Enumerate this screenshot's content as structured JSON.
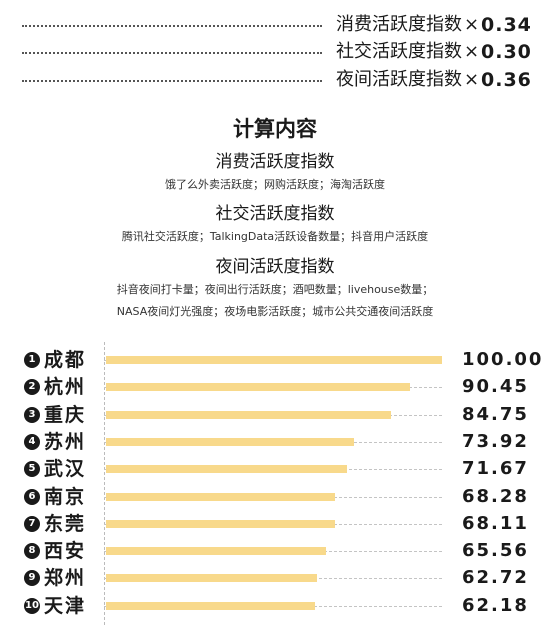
{
  "weights": [
    {
      "label": "消费活跃度指数",
      "times": "×",
      "value": "0.34"
    },
    {
      "label": "社交活跃度指数",
      "times": "×",
      "value": "0.30"
    },
    {
      "label": "夜间活跃度指数",
      "times": "×",
      "value": "0.36"
    }
  ],
  "calc": {
    "title": "计算内容",
    "sections": [
      {
        "title": "消费活跃度指数",
        "lines": [
          "饿了么外卖活跃度；网购活跃度；海淘活跃度"
        ]
      },
      {
        "title": "社交活跃度指数",
        "lines": [
          "腾讯社交活跃度；TalkingData活跃设备数量；抖音用户活跃度"
        ]
      },
      {
        "title": "夜间活跃度指数",
        "lines": [
          "抖音夜间打卡量；夜间出行活跃度；酒吧数量；livehouse数量；",
          "NASA夜间灯光强度；夜场电影活跃度；城市公共交通夜间活跃度"
        ]
      }
    ]
  },
  "chart_data": {
    "type": "bar",
    "orientation": "horizontal",
    "categories": [
      "成都",
      "杭州",
      "重庆",
      "苏州",
      "武汉",
      "南京",
      "东莞",
      "西安",
      "郑州",
      "天津"
    ],
    "ranks": [
      "1",
      "2",
      "3",
      "4",
      "5",
      "6",
      "7",
      "8",
      "9",
      "10"
    ],
    "values": [
      100.0,
      90.45,
      84.75,
      73.92,
      71.67,
      68.28,
      68.11,
      65.56,
      62.72,
      62.18
    ],
    "value_labels": [
      "100.00",
      "90.45",
      "84.75",
      "73.92",
      "71.67",
      "68.28",
      "68.11",
      "65.56",
      "62.72",
      "62.18"
    ],
    "xlim": [
      0,
      100
    ],
    "bar_color": "#f8d98b",
    "title": "",
    "xlabel": "",
    "ylabel": ""
  }
}
